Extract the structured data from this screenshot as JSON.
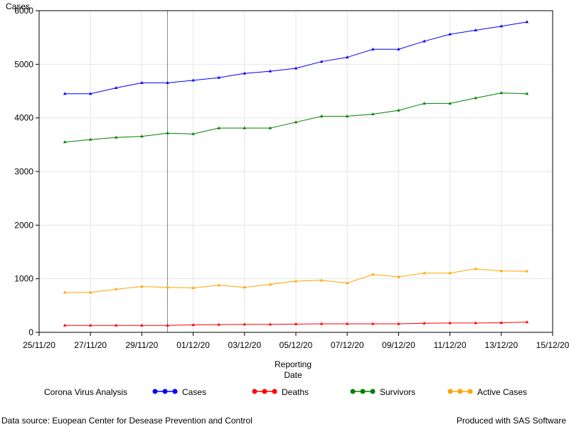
{
  "chart_data": {
    "type": "line",
    "ylabel": "Cases",
    "xlabel": "Reporting Date",
    "ylim": [
      0,
      6000
    ],
    "yticks": [
      0,
      1000,
      2000,
      3000,
      4000,
      5000,
      6000
    ],
    "xlim": [
      "25/11/20",
      "15/12/20"
    ],
    "xtick_labels": [
      "25/11/20",
      "27/11/20",
      "29/11/20",
      "01/12/20",
      "03/12/20",
      "05/12/20",
      "07/12/20",
      "09/12/20",
      "11/12/20",
      "13/12/20",
      "15/12/20"
    ],
    "reference_line_x": "30/11/20",
    "grid": true,
    "x": [
      "26/11/20",
      "27/11/20",
      "28/11/20",
      "29/11/20",
      "30/11/20",
      "01/12/20",
      "02/12/20",
      "03/12/20",
      "04/12/20",
      "05/12/20",
      "06/12/20",
      "07/12/20",
      "08/12/20",
      "09/12/20",
      "10/12/20",
      "11/12/20",
      "12/12/20",
      "13/12/20",
      "14/12/20"
    ],
    "series": [
      {
        "name": "Cases",
        "color": "#0000ff",
        "values": [
          4450,
          4450,
          4560,
          4655,
          4655,
          4700,
          4750,
          4830,
          4870,
          4925,
          5050,
          5130,
          5280,
          5280,
          5430,
          5560,
          5635,
          5710,
          5790
        ]
      },
      {
        "name": "Deaths",
        "color": "#ff0000",
        "values": [
          130,
          130,
          130,
          130,
          130,
          140,
          145,
          150,
          150,
          155,
          160,
          160,
          160,
          160,
          170,
          175,
          175,
          180,
          190
        ]
      },
      {
        "name": "Survivors",
        "color": "#008000",
        "values": [
          3550,
          3595,
          3635,
          3655,
          3715,
          3700,
          3810,
          3810,
          3810,
          3920,
          4030,
          4030,
          4070,
          4140,
          4270,
          4270,
          4370,
          4465,
          4450
        ]
      },
      {
        "name": "Active Cases",
        "color": "#ffa500",
        "values": [
          745,
          745,
          805,
          855,
          840,
          830,
          880,
          840,
          895,
          955,
          970,
          920,
          1080,
          1035,
          1105,
          1105,
          1185,
          1145,
          1140
        ]
      }
    ],
    "legend_title": "Corona Virus Analysis",
    "legend_position": "bottom"
  },
  "footer": {
    "source": "Data source: Euopean Center for Desease Prevention and Control",
    "produced": "Produced with SAS Software"
  }
}
